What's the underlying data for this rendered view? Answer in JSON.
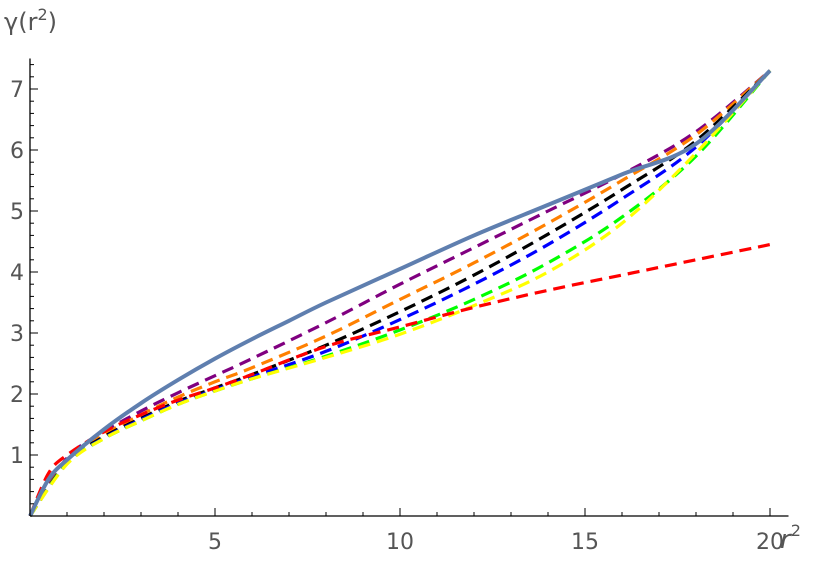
{
  "chart_data": {
    "type": "line",
    "xlabel": "r",
    "xlabel_sup": "2",
    "ylabel_pre": "γ(r",
    "ylabel_sup": "2",
    "ylabel_post": ")",
    "xlim": [
      0,
      20.5
    ],
    "ylim": [
      0,
      7.5
    ],
    "x_ticks": [
      5,
      10,
      15,
      20
    ],
    "y_ticks": [
      1,
      2,
      3,
      4,
      5,
      6,
      7
    ],
    "grid": false,
    "legend": "none",
    "series": [
      {
        "style": "solid",
        "color": "#5f7faf",
        "points": [
          [
            0,
            0
          ],
          [
            0.5,
            0.6
          ],
          [
            1,
            0.92
          ],
          [
            2,
            1.42
          ],
          [
            3,
            1.85
          ],
          [
            4,
            2.23
          ],
          [
            5,
            2.58
          ],
          [
            6,
            2.9
          ],
          [
            7,
            3.2
          ],
          [
            8,
            3.5
          ],
          [
            10,
            4.05
          ],
          [
            12,
            4.6
          ],
          [
            14,
            5.1
          ],
          [
            16,
            5.6
          ],
          [
            18,
            6.1
          ],
          [
            20,
            7.3
          ]
        ]
      },
      {
        "style": "dashed",
        "color": "#800080",
        "points": [
          [
            0,
            0
          ],
          [
            1,
            0.95
          ],
          [
            2,
            1.38
          ],
          [
            3,
            1.72
          ],
          [
            4,
            2.02
          ],
          [
            5,
            2.3
          ],
          [
            6,
            2.58
          ],
          [
            8,
            3.17
          ],
          [
            10,
            3.8
          ],
          [
            12,
            4.4
          ],
          [
            14,
            5.0
          ],
          [
            16,
            5.6
          ],
          [
            18,
            6.3
          ],
          [
            20,
            7.3
          ]
        ]
      },
      {
        "style": "dashed",
        "color": "#ff8000",
        "points": [
          [
            0,
            0
          ],
          [
            1,
            0.9
          ],
          [
            2,
            1.33
          ],
          [
            3,
            1.66
          ],
          [
            4,
            1.95
          ],
          [
            5,
            2.2
          ],
          [
            6,
            2.43
          ],
          [
            8,
            2.95
          ],
          [
            10,
            3.55
          ],
          [
            12,
            4.15
          ],
          [
            14,
            4.8
          ],
          [
            16,
            5.5
          ],
          [
            18,
            6.25
          ],
          [
            20,
            7.3
          ]
        ]
      },
      {
        "style": "dashed",
        "color": "#000000",
        "points": [
          [
            0,
            0
          ],
          [
            1,
            0.88
          ],
          [
            2,
            1.3
          ],
          [
            3,
            1.6
          ],
          [
            4,
            1.88
          ],
          [
            5,
            2.1
          ],
          [
            6,
            2.32
          ],
          [
            8,
            2.8
          ],
          [
            10,
            3.35
          ],
          [
            12,
            3.95
          ],
          [
            14,
            4.62
          ],
          [
            16,
            5.35
          ],
          [
            18,
            6.15
          ],
          [
            20,
            7.3
          ]
        ]
      },
      {
        "style": "dashed",
        "color": "#0000ff",
        "points": [
          [
            0,
            0
          ],
          [
            1,
            0.87
          ],
          [
            2,
            1.28
          ],
          [
            3,
            1.58
          ],
          [
            4,
            1.85
          ],
          [
            5,
            2.07
          ],
          [
            6,
            2.28
          ],
          [
            8,
            2.7
          ],
          [
            10,
            3.22
          ],
          [
            12,
            3.8
          ],
          [
            14,
            4.45
          ],
          [
            16,
            5.2
          ],
          [
            18,
            6.05
          ],
          [
            20,
            7.3
          ]
        ]
      },
      {
        "style": "dashed",
        "color": "#00ff00",
        "points": [
          [
            0,
            0
          ],
          [
            1,
            0.86
          ],
          [
            2,
            1.27
          ],
          [
            3,
            1.56
          ],
          [
            4,
            1.83
          ],
          [
            5,
            2.05
          ],
          [
            6,
            2.25
          ],
          [
            8,
            2.62
          ],
          [
            10,
            3.05
          ],
          [
            12,
            3.55
          ],
          [
            14,
            4.15
          ],
          [
            16,
            4.9
          ],
          [
            18,
            5.9
          ],
          [
            20,
            7.3
          ]
        ]
      },
      {
        "style": "dashed",
        "color": "#ffff00",
        "points": [
          [
            0,
            0
          ],
          [
            1,
            0.85
          ],
          [
            2,
            1.27
          ],
          [
            3,
            1.56
          ],
          [
            4,
            1.83
          ],
          [
            5,
            2.05
          ],
          [
            6,
            2.25
          ],
          [
            8,
            2.6
          ],
          [
            10,
            2.98
          ],
          [
            12,
            3.45
          ],
          [
            14,
            4.0
          ],
          [
            16,
            4.8
          ],
          [
            18,
            5.95
          ],
          [
            20,
            7.3
          ]
        ]
      },
      {
        "style": "dashed",
        "color": "#ff0000",
        "points": [
          [
            0,
            0
          ],
          [
            0.5,
            0.7
          ],
          [
            1,
            1.0
          ],
          [
            2,
            1.38
          ],
          [
            3,
            1.66
          ],
          [
            4,
            1.9
          ],
          [
            5,
            2.1
          ],
          [
            6,
            2.32
          ],
          [
            8,
            2.78
          ],
          [
            10,
            3.1
          ],
          [
            12,
            3.42
          ],
          [
            14,
            3.7
          ],
          [
            16,
            3.95
          ],
          [
            18,
            4.2
          ],
          [
            20,
            4.45
          ]
        ]
      }
    ]
  }
}
